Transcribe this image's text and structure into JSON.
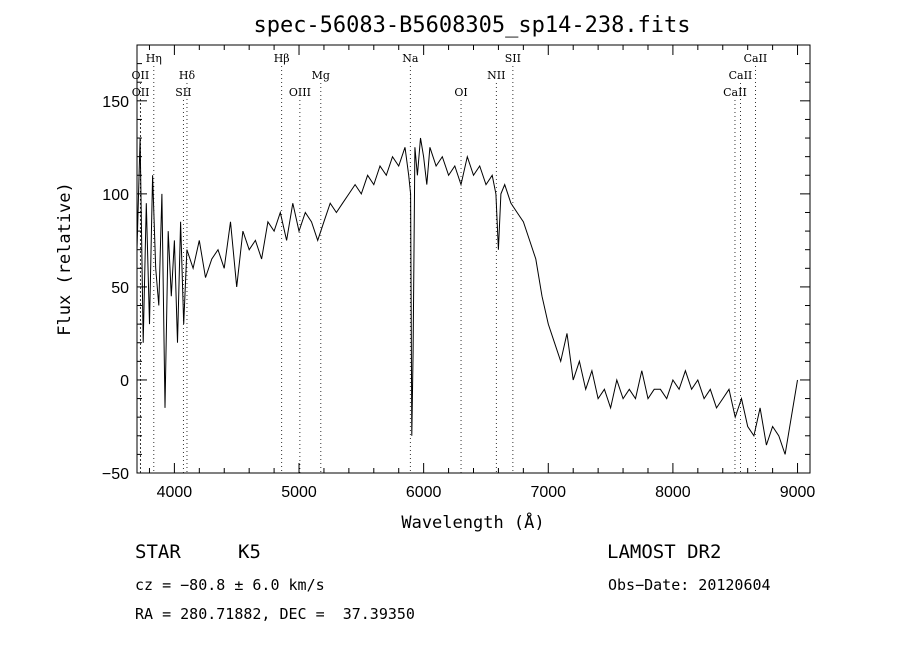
{
  "chart_data": {
    "type": "line",
    "title": "spec-56083-B5608305_sp14-238.fits",
    "xlabel": "Wavelength (Å)",
    "ylabel": "Flux (relative)",
    "xlim": [
      3700,
      9100
    ],
    "ylim": [
      -50,
      180
    ],
    "x_ticks": [
      4000,
      5000,
      6000,
      7000,
      8000,
      9000
    ],
    "y_ticks": [
      -50,
      0,
      50,
      100,
      150
    ],
    "grid": false,
    "series": [
      {
        "x": [
          3700,
          3725,
          3750,
          3775,
          3800,
          3825,
          3850,
          3875,
          3900,
          3925,
          3950,
          3975,
          4000,
          4025,
          4050,
          4075,
          4100,
          4150,
          4200,
          4250,
          4300,
          4350,
          4400,
          4450,
          4500,
          4550,
          4600,
          4650,
          4700,
          4750,
          4800,
          4850,
          4900,
          4950,
          5000,
          5050,
          5100,
          5150,
          5200,
          5250,
          5300,
          5350,
          5400,
          5450,
          5500,
          5550,
          5600,
          5650,
          5700,
          5750,
          5800,
          5850,
          5880,
          5895,
          5905,
          5915,
          5930,
          5950,
          5975,
          6000,
          6025,
          6050,
          6100,
          6150,
          6200,
          6250,
          6300,
          6350,
          6400,
          6450,
          6500,
          6550,
          6580,
          6600,
          6620,
          6650,
          6700,
          6750,
          6800,
          6850,
          6900,
          6950,
          7000,
          7050,
          7100,
          7150,
          7200,
          7250,
          7300,
          7350,
          7400,
          7450,
          7500,
          7550,
          7600,
          7650,
          7700,
          7750,
          7800,
          7850,
          7900,
          7950,
          8000,
          8050,
          8100,
          8150,
          8200,
          8250,
          8300,
          8350,
          8400,
          8450,
          8500,
          8550,
          8600,
          8650,
          8700,
          8750,
          8800,
          8850,
          8900,
          8950,
          9000
        ],
        "y": [
          70,
          130,
          20,
          95,
          30,
          110,
          60,
          40,
          100,
          -15,
          80,
          45,
          75,
          20,
          85,
          30,
          70,
          60,
          75,
          55,
          65,
          70,
          60,
          85,
          50,
          80,
          70,
          75,
          65,
          85,
          80,
          90,
          75,
          95,
          80,
          90,
          85,
          75,
          85,
          95,
          90,
          95,
          100,
          105,
          100,
          110,
          105,
          115,
          110,
          120,
          115,
          125,
          110,
          100,
          -30,
          15,
          125,
          110,
          130,
          120,
          105,
          125,
          115,
          120,
          110,
          115,
          105,
          120,
          110,
          115,
          105,
          110,
          100,
          70,
          100,
          105,
          95,
          90,
          85,
          75,
          65,
          45,
          30,
          20,
          10,
          25,
          0,
          10,
          -5,
          5,
          -10,
          -5,
          -15,
          0,
          -10,
          -5,
          -10,
          5,
          -10,
          -5,
          -5,
          -10,
          0,
          -5,
          5,
          -5,
          0,
          -10,
          -5,
          -15,
          -10,
          -5,
          -20,
          -10,
          -25,
          -30,
          -15,
          -35,
          -25,
          -30,
          -40,
          -20,
          0
        ]
      }
    ],
    "lines": [
      {
        "label": "Hη",
        "x": 3835,
        "row": 1
      },
      {
        "label": "OII",
        "x": 3727,
        "row": 2
      },
      {
        "label": "Hδ",
        "x": 4101,
        "row": 2
      },
      {
        "label": "OII",
        "x": 3729,
        "row": 3
      },
      {
        "label": "SII",
        "x": 4072,
        "row": 3
      },
      {
        "label": "Hβ",
        "x": 4861,
        "row": 1
      },
      {
        "label": "Mg",
        "x": 5175,
        "row": 2
      },
      {
        "label": "OIII",
        "x": 5007,
        "row": 3
      },
      {
        "label": "Na",
        "x": 5893,
        "row": 1
      },
      {
        "label": "NII",
        "x": 6583,
        "row": 2
      },
      {
        "label": "OI",
        "x": 6300,
        "row": 3
      },
      {
        "label": "SII",
        "x": 6716,
        "row": 1
      },
      {
        "label": "CaII",
        "x": 8662,
        "row": 1
      },
      {
        "label": "CaII",
        "x": 8542,
        "row": 2
      },
      {
        "label": "CaII",
        "x": 8498,
        "row": 3
      }
    ]
  },
  "footer": {
    "class_label": "STAR",
    "subclass": "K5",
    "survey": "LAMOST DR2",
    "cz": "cz = −80.8 ± 6.0 km/s",
    "obs_date": "Obs−Date: 20120604",
    "coords": "RA = 280.71882, DEC =  37.39350"
  }
}
